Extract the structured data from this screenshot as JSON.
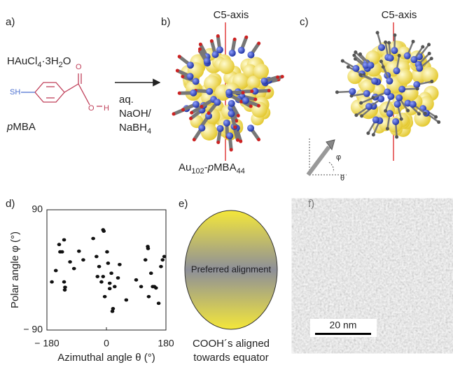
{
  "panels": {
    "a": {
      "letter": "a)",
      "reagent": [
        "HAuCl",
        "4",
        "·3H",
        "2",
        "O"
      ],
      "thiol": "SH",
      "oxygen_top": "O",
      "oxygen_bottom": "O",
      "hydrogen": "H",
      "ligand": [
        "p",
        "MBA"
      ],
      "conditions": [
        "aq.",
        "NaOH/"
      ],
      "reductant": [
        "NaBH",
        "4"
      ]
    },
    "b": {
      "letter": "b)",
      "axis_label": "C5-axis",
      "product": [
        "Au",
        "102",
        "-",
        "p",
        "MBA",
        "44"
      ]
    },
    "c": {
      "letter": "c)",
      "axis_label": "C5-axis",
      "phi": "φ",
      "theta": "θ"
    },
    "d": {
      "letter": "d)"
    },
    "e": {
      "letter": "e)",
      "inner_label": "Preferred alignment",
      "caption": [
        "COOH´s aligned",
        "towards equator"
      ]
    },
    "f": {
      "letter": "f)",
      "scale_bar": "20 nm"
    }
  },
  "chart_data": {
    "type": "scatter",
    "x_label": "Azimuthal angle  θ (°)",
    "y_label": "Polar angle  φ (°)",
    "xlim": [
      -180,
      180
    ],
    "ylim": [
      -90,
      90
    ],
    "xticks": [
      {
        "value": -180,
        "label": "− 180"
      },
      0,
      180
    ],
    "yticks": [
      90,
      {
        "value": -90,
        "label": "− 90"
      }
    ],
    "color": "#111111",
    "x": [
      -165,
      -153,
      -143,
      -140,
      -134,
      -128,
      -128,
      -126,
      -125,
      -110,
      -98,
      -83,
      -70,
      -40,
      -30,
      -27,
      -22,
      -15,
      -10,
      -8,
      -10,
      -5,
      2,
      5,
      10,
      10,
      15,
      18,
      20,
      25,
      35,
      40,
      60,
      90,
      105,
      118,
      125,
      126,
      128,
      135,
      140,
      145,
      150,
      158,
      165,
      170,
      175
    ],
    "y": [
      -18,
      -1,
      38,
      27,
      27,
      45,
      -18,
      -30,
      -26,
      12,
      2,
      28,
      15,
      47,
      20,
      -10,
      5,
      -18,
      60,
      58,
      -10,
      -40,
      27,
      10,
      -20,
      -28,
      -5,
      -62,
      -58,
      -25,
      -12,
      8,
      -45,
      -15,
      -25,
      15,
      35,
      32,
      -40,
      -5,
      -25,
      -25,
      -27,
      -50,
      5,
      15,
      20
    ]
  }
}
